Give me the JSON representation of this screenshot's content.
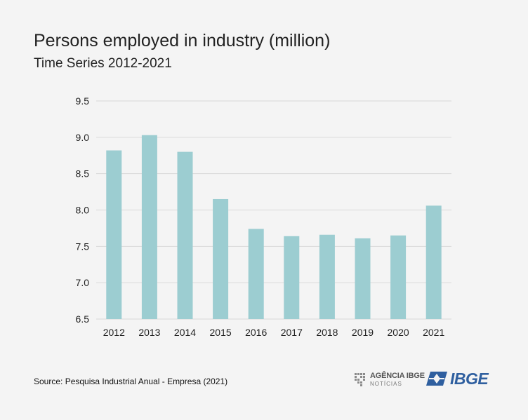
{
  "header": {
    "title": "Persons employed in industry (million)",
    "subtitle": "Time Series 2012-2021"
  },
  "footer": {
    "source": "Source: Pesquisa Industrial Anual - Empresa (2021)",
    "agencia_top": "AGÊNCIA IBGE",
    "agencia_bottom": "NOTÍCIAS",
    "ibge_logo": "IBGE"
  },
  "colors": {
    "bar": "#9ccdd1",
    "grid": "#d9d9d9",
    "text": "#222222",
    "ibge_blue": "#2f5f9f"
  },
  "chart_data": {
    "type": "bar",
    "title": "Persons employed in industry (million)",
    "subtitle": "Time Series 2012-2021",
    "categories": [
      "2012",
      "2013",
      "2014",
      "2015",
      "2016",
      "2017",
      "2018",
      "2019",
      "2020",
      "2021"
    ],
    "values": [
      8.82,
      9.03,
      8.8,
      8.15,
      7.74,
      7.64,
      7.66,
      7.61,
      7.65,
      8.06
    ],
    "ylim": [
      6.5,
      9.5
    ],
    "yticks": [
      "6.5",
      "7.0",
      "7.5",
      "8.0",
      "8.5",
      "9.0",
      "9.5"
    ],
    "grid": true,
    "legend": "none"
  }
}
